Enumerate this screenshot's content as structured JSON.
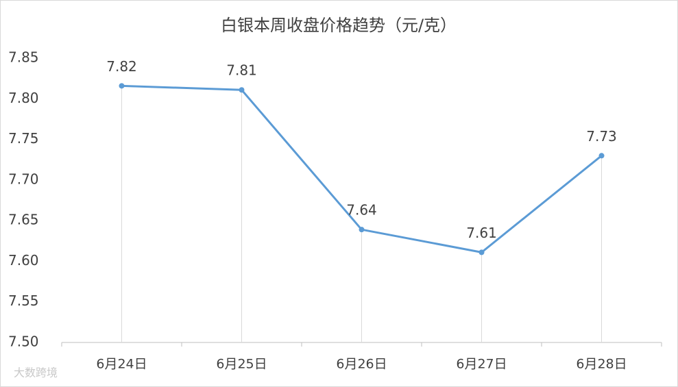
{
  "chart_data": {
    "type": "line",
    "title": "白银本周收盘价格趋势（元/克）",
    "categories": [
      "6月24日",
      "6月25日",
      "6月26日",
      "6月27日",
      "6月28日"
    ],
    "series": [
      {
        "name": "白银",
        "color": "#5b9bd5",
        "values": [
          7.816,
          7.811,
          7.639,
          7.611,
          7.73
        ],
        "value_labels": [
          "7.82",
          "7.81",
          "7.64",
          "7.61",
          "7.73"
        ]
      }
    ],
    "ylim": [
      7.5,
      7.85
    ],
    "yticks": [
      {
        "value": 7.5,
        "label": "7.50"
      },
      7.55,
      {
        "value": 7.6,
        "label": "7.60"
      },
      7.65,
      {
        "value": 7.7,
        "label": "7.70"
      },
      7.75,
      {
        "value": 7.8,
        "label": "7.80"
      },
      7.85
    ],
    "drop_lines": true,
    "watermark": "大数跨境"
  }
}
